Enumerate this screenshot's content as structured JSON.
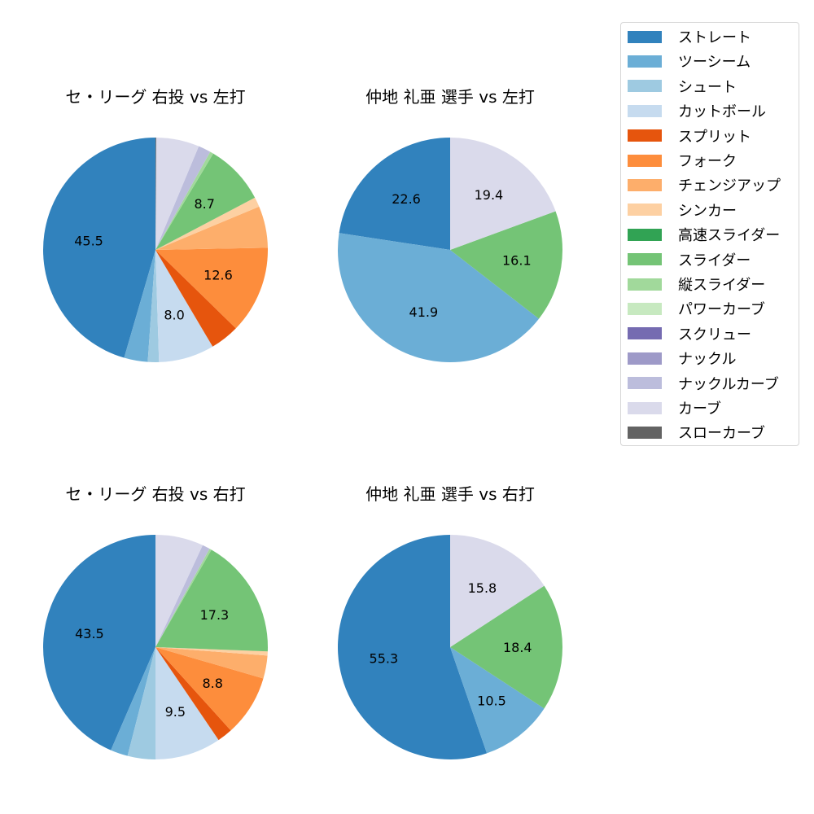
{
  "legend": {
    "items": [
      {
        "label": "ストレート",
        "color": "#3182bd"
      },
      {
        "label": "ツーシーム",
        "color": "#6baed6"
      },
      {
        "label": "シュート",
        "color": "#9ecae1"
      },
      {
        "label": "カットボール",
        "color": "#c6dbef"
      },
      {
        "label": "スプリット",
        "color": "#e6550d"
      },
      {
        "label": "フォーク",
        "color": "#fd8d3c"
      },
      {
        "label": "チェンジアップ",
        "color": "#fdae6b"
      },
      {
        "label": "シンカー",
        "color": "#fdd0a2"
      },
      {
        "label": "高速スライダー",
        "color": "#31a354"
      },
      {
        "label": "スライダー",
        "color": "#74c476"
      },
      {
        "label": "縦スライダー",
        "color": "#a1d99b"
      },
      {
        "label": "パワーカーブ",
        "color": "#c7e9c0"
      },
      {
        "label": "スクリュー",
        "color": "#756bb1"
      },
      {
        "label": "ナックル",
        "color": "#9e9ac8"
      },
      {
        "label": "ナックルカーブ",
        "color": "#bcbddc"
      },
      {
        "label": "カーブ",
        "color": "#dadaeb"
      },
      {
        "label": "スローカーブ",
        "color": "#636363"
      }
    ]
  },
  "chart_data": [
    {
      "type": "pie",
      "title": "セ・リーグ 右投 vs 左打",
      "start_angle": 90,
      "direction": "counterclockwise",
      "categories": [
        "ストレート",
        "ツーシーム",
        "シュート",
        "カットボール",
        "スプリット",
        "フォーク",
        "チェンジアップ",
        "シンカー",
        "スライダー",
        "縦スライダー",
        "ナックルカーブ",
        "カーブ",
        "スローカーブ"
      ],
      "values": [
        45.5,
        3.4,
        1.6,
        8.0,
        4.2,
        12.6,
        6.0,
        1.4,
        8.7,
        0.5,
        1.8,
        6.2,
        0.1
      ],
      "labels_shown": [
        "45.5",
        "",
        "",
        "8.0",
        "",
        "12.6",
        "",
        "",
        "8.7",
        "",
        "",
        "",
        ""
      ]
    },
    {
      "type": "pie",
      "title": "仲地 礼亜 選手 vs 左打",
      "start_angle": 90,
      "direction": "counterclockwise",
      "categories": [
        "ストレート",
        "ツーシーム",
        "スライダー",
        "カーブ"
      ],
      "values": [
        22.6,
        41.9,
        16.1,
        19.4
      ],
      "labels_shown": [
        "22.6",
        "41.9",
        "16.1",
        "19.4"
      ]
    },
    {
      "type": "pie",
      "title": "セ・リーグ 右投 vs 右打",
      "start_angle": 90,
      "direction": "counterclockwise",
      "categories": [
        "ストレート",
        "ツーシーム",
        "シュート",
        "カットボール",
        "スプリット",
        "フォーク",
        "チェンジアップ",
        "シンカー",
        "スライダー",
        "縦スライダー",
        "ナックルカーブ",
        "カーブ"
      ],
      "values": [
        43.5,
        2.5,
        4.0,
        9.5,
        2.2,
        8.8,
        3.3,
        0.6,
        17.3,
        0.3,
        1.1,
        6.9
      ],
      "labels_shown": [
        "43.5",
        "",
        "",
        "9.5",
        "",
        "8.8",
        "",
        "",
        "17.3",
        "",
        "",
        ""
      ]
    },
    {
      "type": "pie",
      "title": "仲地 礼亜 選手 vs 右打",
      "start_angle": 90,
      "direction": "counterclockwise",
      "categories": [
        "ストレート",
        "ツーシーム",
        "スライダー",
        "カーブ"
      ],
      "values": [
        55.3,
        10.5,
        18.4,
        15.8
      ],
      "labels_shown": [
        "55.3",
        "10.5",
        "18.4",
        "15.8"
      ]
    }
  ]
}
